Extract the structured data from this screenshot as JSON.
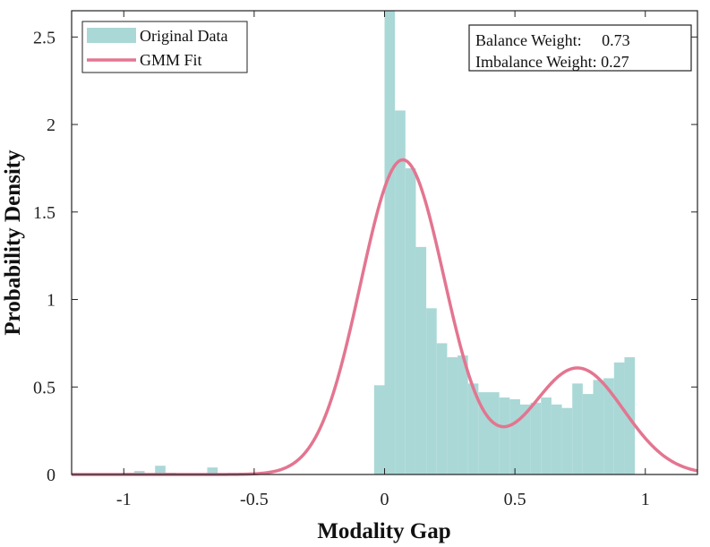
{
  "chart_data": {
    "type": "bar",
    "title": "",
    "xlabel": "Modality Gap",
    "ylabel": "Probability Density",
    "xlim": [
      -1.2,
      1.2
    ],
    "ylim": [
      0,
      2.65
    ],
    "xticks": [
      -1,
      -0.5,
      0,
      0.5,
      1
    ],
    "xtick_labels": [
      "-1",
      "-0.5",
      "0",
      "0.5",
      "1"
    ],
    "yticks": [
      0,
      0.5,
      1,
      1.5,
      2,
      2.5
    ],
    "ytick_labels": [
      "0",
      "0.5",
      "1",
      "1.5",
      "2",
      "2.5"
    ],
    "grid": false,
    "legend_position": "top-left",
    "histogram": {
      "name": "Original Data",
      "color": "#aad8d6",
      "bin_width": 0.04,
      "bins": [
        {
          "x0": -1.0,
          "value": 0.01
        },
        {
          "x0": -0.96,
          "value": 0.02
        },
        {
          "x0": -0.88,
          "value": 0.05
        },
        {
          "x0": -0.84,
          "value": 0.01
        },
        {
          "x0": -0.68,
          "value": 0.04
        },
        {
          "x0": -0.04,
          "value": 0.51
        },
        {
          "x0": 0.0,
          "value": 2.7
        },
        {
          "x0": 0.04,
          "value": 2.08
        },
        {
          "x0": 0.08,
          "value": 1.75
        },
        {
          "x0": 0.12,
          "value": 1.3
        },
        {
          "x0": 0.16,
          "value": 0.95
        },
        {
          "x0": 0.2,
          "value": 0.75
        },
        {
          "x0": 0.24,
          "value": 0.67
        },
        {
          "x0": 0.28,
          "value": 0.68
        },
        {
          "x0": 0.32,
          "value": 0.52
        },
        {
          "x0": 0.36,
          "value": 0.47
        },
        {
          "x0": 0.4,
          "value": 0.47
        },
        {
          "x0": 0.44,
          "value": 0.44
        },
        {
          "x0": 0.48,
          "value": 0.43
        },
        {
          "x0": 0.52,
          "value": 0.4
        },
        {
          "x0": 0.56,
          "value": 0.41
        },
        {
          "x0": 0.6,
          "value": 0.44
        },
        {
          "x0": 0.64,
          "value": 0.4
        },
        {
          "x0": 0.68,
          "value": 0.38
        },
        {
          "x0": 0.72,
          "value": 0.52
        },
        {
          "x0": 0.76,
          "value": 0.46
        },
        {
          "x0": 0.8,
          "value": 0.54
        },
        {
          "x0": 0.84,
          "value": 0.55
        },
        {
          "x0": 0.88,
          "value": 0.64
        },
        {
          "x0": 0.92,
          "value": 0.67
        }
      ]
    },
    "fit": {
      "name": "GMM Fit",
      "color": "#e37590",
      "components": [
        {
          "weight": 0.73,
          "mean": 0.07,
          "std": 0.162
        },
        {
          "weight": 0.27,
          "mean": 0.74,
          "std": 0.177
        }
      ]
    },
    "legend": [
      {
        "label": "Original Data",
        "kind": "patch"
      },
      {
        "label": "GMM Fit",
        "kind": "line"
      }
    ],
    "annotation": {
      "lines": [
        "Balance Weight:     0.73",
        "Imbalance Weight: 0.27"
      ]
    }
  }
}
